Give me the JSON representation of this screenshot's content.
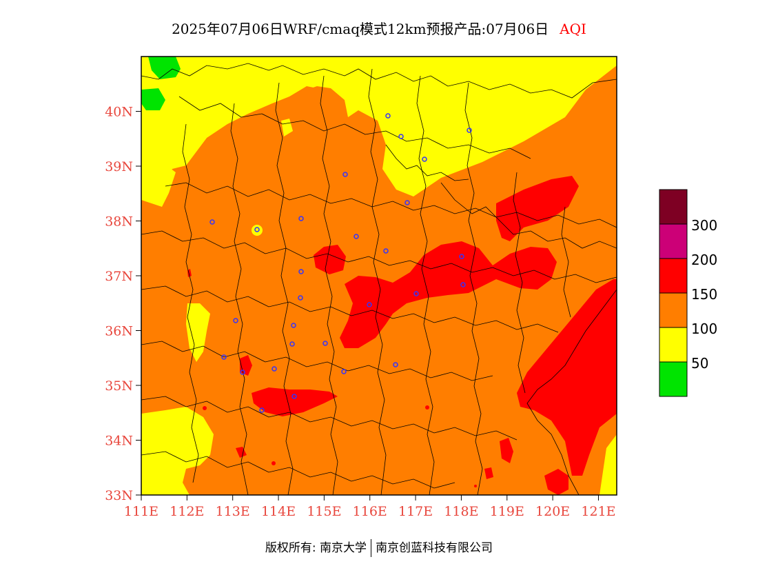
{
  "header": {
    "title": "2025年07月06日WRF/cmaq模式12km预报产品:07月06日",
    "product": "AQI"
  },
  "map": {
    "lon_range": [
      111,
      121.4
    ],
    "lat_range": [
      33,
      41
    ],
    "lon_ticks": [
      "111E",
      "112E",
      "113E",
      "114E",
      "115E",
      "116E",
      "117E",
      "118E",
      "119E",
      "120E",
      "121E"
    ],
    "lat_ticks": [
      "33N",
      "34N",
      "35N",
      "36N",
      "37N",
      "38N",
      "39N",
      "40N"
    ],
    "colors": {
      "yellow": "#ffff00",
      "orange": "#ff7e00",
      "red": "#ff0000",
      "green": "#00e400",
      "station": "#3333ff"
    }
  },
  "legend": {
    "bins": [
      {
        "label": "",
        "color": "#00e400"
      },
      {
        "label": "50",
        "color": "#ffff00"
      },
      {
        "label": "100",
        "color": "#ff7e00"
      },
      {
        "label": "150",
        "color": "#ff0000"
      },
      {
        "label": "200",
        "color": "#cc0077"
      },
      {
        "label": "300",
        "color": "#7e0023"
      }
    ],
    "labels": [
      "50",
      "100",
      "150",
      "200",
      "300"
    ]
  },
  "footer": {
    "owner": "版权所有: 南京大学",
    "company": "南京创蓝科技有限公司"
  }
}
